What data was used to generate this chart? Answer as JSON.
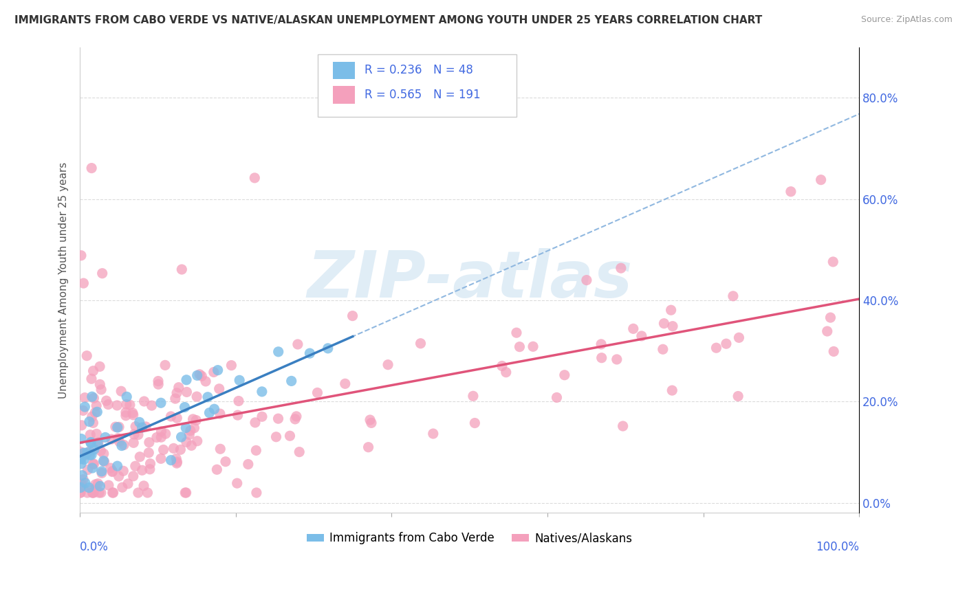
{
  "title": "IMMIGRANTS FROM CABO VERDE VS NATIVE/ALASKAN UNEMPLOYMENT AMONG YOUTH UNDER 25 YEARS CORRELATION CHART",
  "source": "Source: ZipAtlas.com",
  "ylabel": "Unemployment Among Youth under 25 years",
  "xlim": [
    0,
    1
  ],
  "ylim": [
    -0.02,
    0.9
  ],
  "ytick_vals": [
    0.0,
    0.2,
    0.4,
    0.6,
    0.8
  ],
  "right_ytick_labels": [
    "0.0%",
    "20.0%",
    "40.0%",
    "60.0%",
    "80.0%"
  ],
  "cabo_R": 0.236,
  "cabo_N": 48,
  "native_R": 0.565,
  "native_N": 191,
  "cabo_color": "#7bbde8",
  "native_color": "#f4a0bc",
  "cabo_line_color": "#3a7fc1",
  "native_line_color": "#e0547a",
  "dashed_line_color": "#90b8e0",
  "watermark_color": "#d8e8f0",
  "background_color": "#ffffff",
  "grid_color": "#d8d8d8",
  "title_color": "#333333",
  "axis_label_color": "#4169e1",
  "source_color": "#999999",
  "legend_border_color": "#cccccc",
  "seed_cabo": 7,
  "seed_native": 13
}
